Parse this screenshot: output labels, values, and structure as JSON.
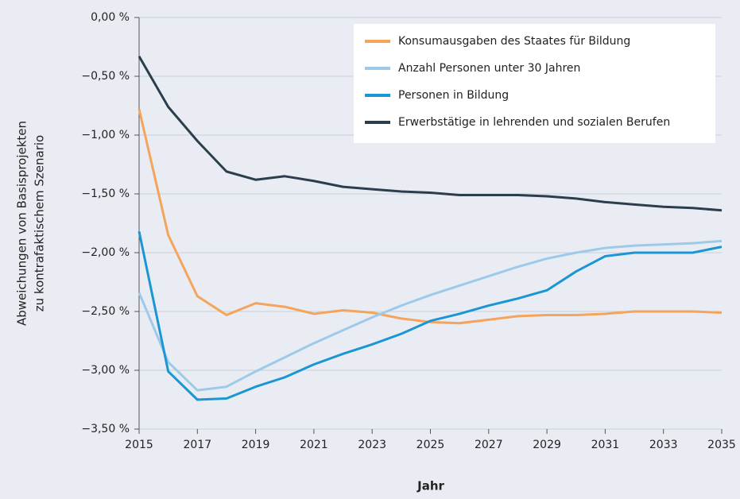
{
  "chart_data": {
    "type": "line",
    "xlabel": "Jahr",
    "ylabel": [
      "Abweichungen von Basisprojekten",
      "zu kontrafaktischem Szenario"
    ],
    "x": [
      2015,
      2016,
      2017,
      2018,
      2019,
      2020,
      2021,
      2022,
      2023,
      2024,
      2025,
      2026,
      2027,
      2028,
      2029,
      2030,
      2031,
      2032,
      2033,
      2034,
      2035
    ],
    "series": [
      {
        "name": "Konsumausgaben des Staates für Bildung",
        "color": "#f4a45c",
        "values": [
          -0.78,
          -1.85,
          -2.37,
          -2.53,
          -2.43,
          -2.46,
          -2.52,
          -2.49,
          -2.51,
          -2.56,
          -2.59,
          -2.6,
          -2.57,
          -2.54,
          -2.53,
          -2.53,
          -2.52,
          -2.5,
          -2.5,
          -2.5,
          -2.51
        ]
      },
      {
        "name": "Anzahl Personen unter 30 Jahren",
        "color": "#9ecae9",
        "values": [
          -2.34,
          -2.93,
          -3.17,
          -3.14,
          -3.01,
          -2.89,
          -2.77,
          -2.66,
          -2.55,
          -2.45,
          -2.36,
          -2.28,
          -2.2,
          -2.12,
          -2.05,
          -2.0,
          -1.96,
          -1.94,
          -1.93,
          -1.92,
          -1.9
        ]
      },
      {
        "name": "Personen in Bildung",
        "color": "#1a96d4",
        "values": [
          -1.82,
          -3.01,
          -3.25,
          -3.24,
          -3.14,
          -3.06,
          -2.95,
          -2.86,
          -2.78,
          -2.69,
          -2.58,
          -2.52,
          -2.45,
          -2.39,
          -2.32,
          -2.16,
          -2.03,
          -2.0,
          -2.0,
          -2.0,
          -1.95
        ]
      },
      {
        "name": "Erwerbstätige in lehrenden und sozialen Berufen",
        "color": "#2c3e4c",
        "values": [
          -0.33,
          -0.76,
          -1.05,
          -1.31,
          -1.38,
          -1.35,
          -1.39,
          -1.44,
          -1.46,
          -1.48,
          -1.49,
          -1.51,
          -1.51,
          -1.51,
          -1.52,
          -1.54,
          -1.57,
          -1.59,
          -1.61,
          -1.62,
          -1.64
        ]
      }
    ],
    "xlim": [
      2015,
      2035
    ],
    "xticks": [
      2015,
      2017,
      2019,
      2021,
      2023,
      2025,
      2027,
      2029,
      2031,
      2033,
      2035
    ],
    "ylim": [
      -3.5,
      0
    ],
    "yticks": [
      {
        "value": 0,
        "label": "0,00 %"
      },
      {
        "value": -0.5,
        "label": "−0,50 %"
      },
      {
        "value": -1,
        "label": "−1,00 %"
      },
      {
        "value": -1.5,
        "label": "−1,50 %"
      },
      {
        "value": -2,
        "label": "−2,00 %"
      },
      {
        "value": -2.5,
        "label": "−2,50 %"
      },
      {
        "value": -3,
        "label": "−3,00 %"
      },
      {
        "value": -3.5,
        "label": "−3,50 %"
      }
    ],
    "grid": true,
    "legend": "upper right"
  }
}
